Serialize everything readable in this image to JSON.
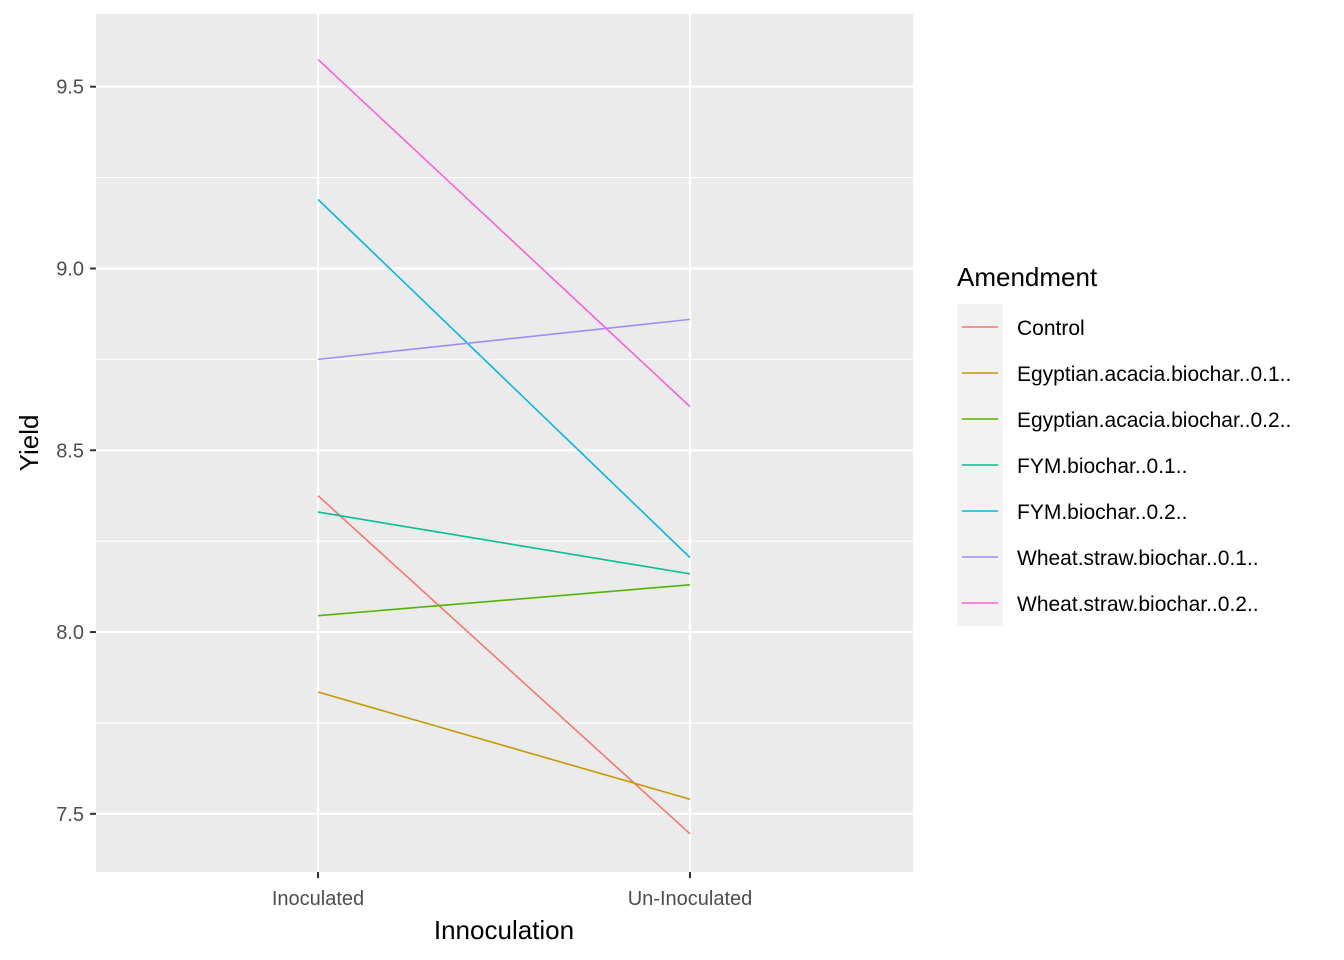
{
  "chart_data": {
    "type": "line",
    "title": "",
    "xlabel": "Innoculation",
    "ylabel": "Yield",
    "categories": [
      "Inoculated",
      "Un-Inoculated"
    ],
    "ylim": [
      7.34,
      9.7
    ],
    "yticks": [
      7.5,
      8.0,
      8.5,
      9.0,
      9.5
    ],
    "ytick_labels": [
      "7.5",
      "8.0",
      "8.5",
      "9.0",
      "9.5"
    ],
    "grid": true,
    "legend": {
      "title": "Amendment",
      "position": "right"
    },
    "series": [
      {
        "name": "Control",
        "color": "#F8766D",
        "values": [
          8.375,
          7.445
        ]
      },
      {
        "name": "Egyptian.acacia.biochar..0.1..",
        "color": "#C49A00",
        "values": [
          7.835,
          7.54
        ]
      },
      {
        "name": "Egyptian.acacia.biochar..0.2..",
        "color": "#53B400",
        "values": [
          8.045,
          8.13
        ]
      },
      {
        "name": "FYM.biochar..0.1..",
        "color": "#00C094",
        "values": [
          8.33,
          8.16
        ]
      },
      {
        "name": "FYM.biochar..0.2..",
        "color": "#00B6EB",
        "values": [
          9.19,
          8.205
        ]
      },
      {
        "name": "Wheat.straw.biochar..0.1..",
        "color": "#A58AFF",
        "values": [
          8.75,
          8.86
        ]
      },
      {
        "name": "Wheat.straw.biochar..0.2..",
        "color": "#FB61D7",
        "values": [
          9.575,
          8.62
        ]
      }
    ]
  }
}
